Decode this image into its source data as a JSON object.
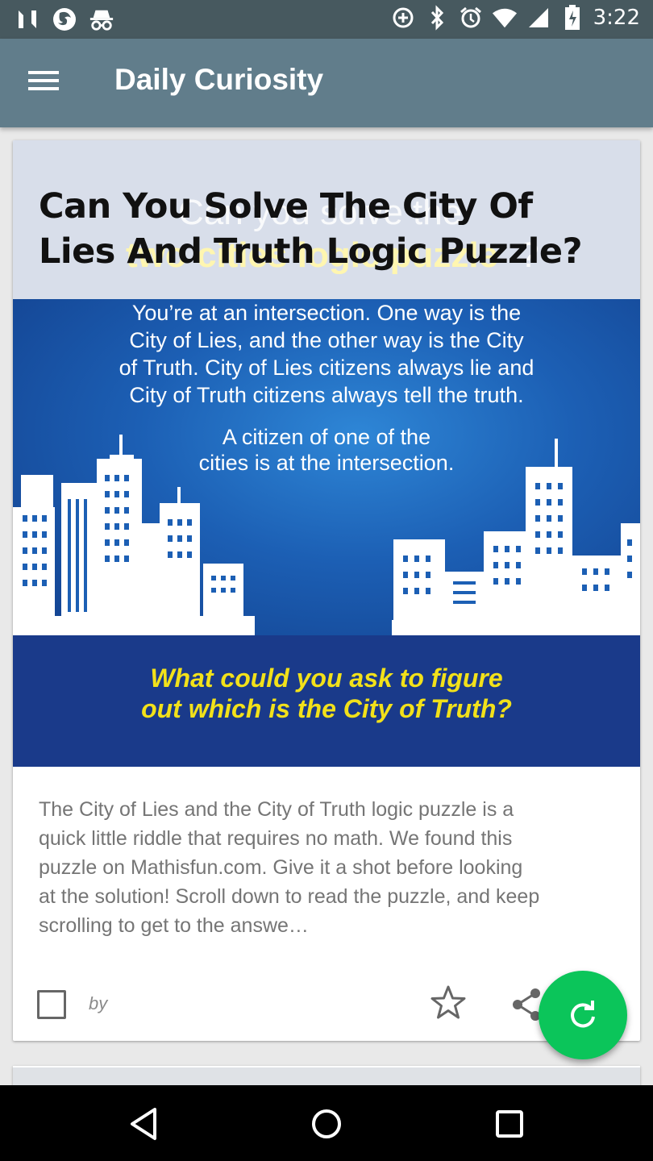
{
  "status_bar": {
    "time": "3:22",
    "icons": [
      "n-notification-icon",
      "firefox-icon",
      "incognito-icon",
      "data-saver-icon",
      "bluetooth-icon",
      "alarm-icon",
      "wifi-icon",
      "signal-icon",
      "battery-icon"
    ]
  },
  "app_bar": {
    "title": "Daily Curiosity",
    "menu_icon": "hamburger-menu-icon"
  },
  "article": {
    "title": "Can You Solve The City Of Lies And Truth Logic Puzzle?",
    "image": {
      "ghost_line_1": "Can you solve the",
      "ghost_line_2": "two cities logic puzzle",
      "ghost_q": "?",
      "intro_lines": [
        "You’re at an intersection. One way is the",
        "City of Lies, and the other way is the City",
        "of Truth. City of Lies citizens always lie and",
        "City of Truth citizens always tell the truth."
      ],
      "citizen_lines": [
        "A citizen of one of the",
        "cities is at the intersection."
      ],
      "question_lines": [
        "What could you ask to figure",
        "out which is the City of Truth?"
      ],
      "colors": {
        "question": "#f2e11a",
        "sky": "#1c5fb4",
        "band": "#1a3a8a"
      }
    },
    "excerpt_lines": [
      "The City of Lies and the City of Truth logic puzzle is a",
      "quick little riddle that requires no math. We found this",
      "puzzle on Mathisfun.com. Give it a shot before looking",
      "at the solution! Scroll down to read the puzzle, and keep",
      "scrolling to get to the answe…"
    ],
    "by_label": "by",
    "checked": false,
    "actions": [
      "star-icon",
      "share-icon"
    ]
  },
  "fab": {
    "icon": "refresh-icon",
    "color": "#0bc55a"
  },
  "nav_bar": {
    "buttons": [
      "back-icon",
      "home-icon",
      "recents-icon"
    ]
  }
}
